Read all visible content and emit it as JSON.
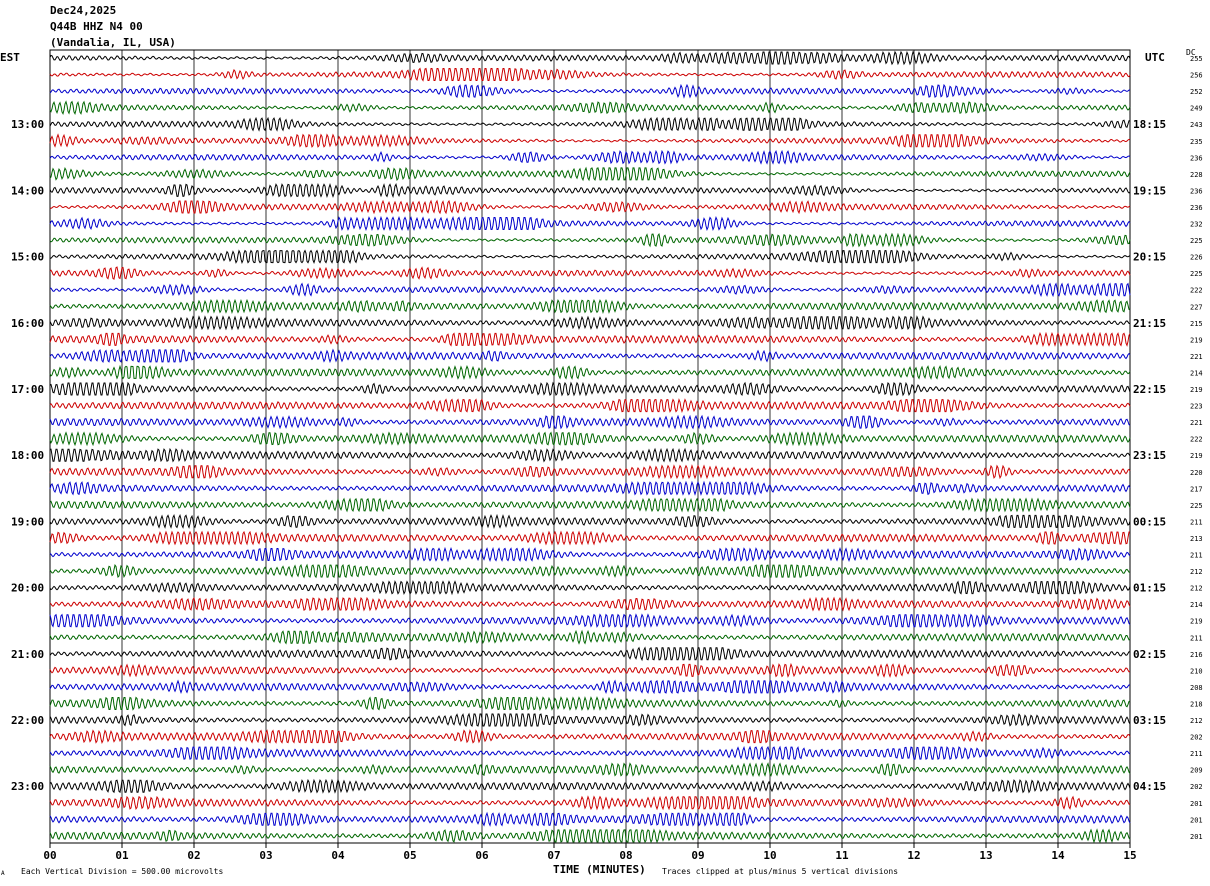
{
  "header": {
    "date": "Dec24,2025",
    "station": "Q44B HHZ N4 00",
    "location": "(Vandalia, IL, USA)"
  },
  "left_label": "EST",
  "right_label": "UTC",
  "dc_label": "DC",
  "footer": {
    "scale_note": "Each Vertical Division =  500.00 microvolts",
    "xlabel": "TIME (MINUTES)",
    "clip_note": "Traces clipped at plus/minus 5 vertical divisions",
    "corner_mark": "A"
  },
  "colors": {
    "trace_cycle": [
      "#000000",
      "#cc0000",
      "#0000cc",
      "#006600"
    ],
    "grid": "#000000",
    "background": "#ffffff"
  },
  "chart_data": {
    "type": "line",
    "title": "",
    "xlabel": "TIME (MINUTES)",
    "xlim": [
      0,
      15
    ],
    "x_ticks": [
      "00",
      "01",
      "02",
      "03",
      "04",
      "05",
      "06",
      "07",
      "08",
      "09",
      "10",
      "11",
      "12",
      "13",
      "14",
      "15"
    ],
    "row_count": 48,
    "rows_per_hour": 4,
    "est_hour_labels": [
      "13:00",
      "14:00",
      "15:00",
      "16:00",
      "17:00",
      "18:00",
      "19:00",
      "20:00",
      "21:00",
      "22:00",
      "23:00"
    ],
    "utc_hour_labels": [
      "18:15",
      "19:15",
      "20:15",
      "21:15",
      "22:15",
      "23:15",
      "00:15",
      "01:15",
      "02:15",
      "03:15",
      "04:15"
    ],
    "dc_offsets": [
      255,
      256,
      252,
      249,
      243,
      235,
      236,
      228,
      236,
      236,
      232,
      225,
      226,
      225,
      222,
      227,
      215,
      219,
      221,
      214,
      219,
      223,
      221,
      222,
      219,
      220,
      217,
      225,
      211,
      213,
      211,
      212,
      212,
      214,
      219,
      211,
      216,
      210,
      208,
      218,
      212,
      202,
      211,
      209,
      202,
      201,
      201,
      201
    ]
  }
}
